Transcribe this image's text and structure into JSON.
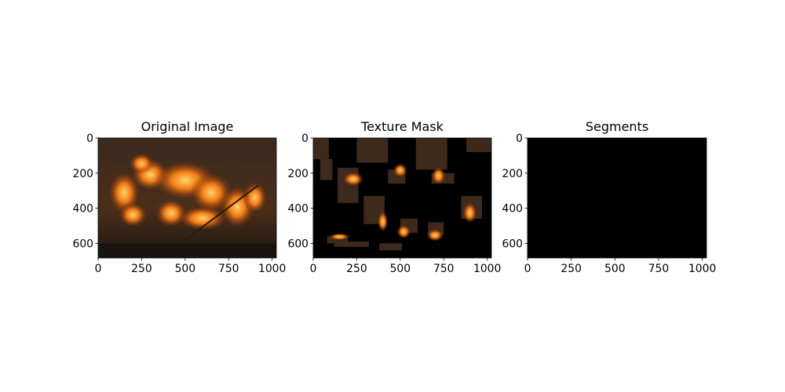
{
  "chart_data": [
    {
      "type": "image",
      "title": "Original Image",
      "xlim": [
        0,
        1024
      ],
      "ylim": [
        683,
        0
      ],
      "xticks": [
        0,
        250,
        500,
        750,
        1000
      ],
      "yticks": [
        0,
        200,
        400,
        600
      ]
    },
    {
      "type": "image",
      "title": "Texture Mask",
      "xlim": [
        0,
        1024
      ],
      "ylim": [
        683,
        0
      ],
      "xticks": [
        0,
        250,
        500,
        750,
        1000
      ],
      "yticks": [
        0,
        200,
        400,
        600
      ]
    },
    {
      "type": "image",
      "title": "Segments",
      "xlim": [
        0,
        1024
      ],
      "ylim": [
        683,
        0
      ],
      "xticks": [
        0,
        250,
        500,
        750,
        1000
      ],
      "yticks": [
        0,
        200,
        400,
        600
      ]
    }
  ]
}
